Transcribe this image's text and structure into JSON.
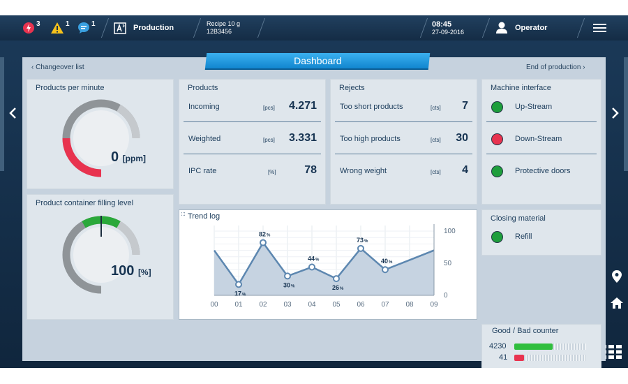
{
  "topbar": {
    "alarms": {
      "count": "3"
    },
    "warnings": {
      "count": "1"
    },
    "messages": {
      "count": "1"
    },
    "mode": "Production",
    "recipe": {
      "line1": "Recipe 10 g",
      "line2": "12B3456"
    },
    "time": "08:45",
    "date": "27-09-2016",
    "user": "Operator"
  },
  "tab_title": "Dashboard",
  "links": {
    "back": "Changeover list",
    "forward": "End of production"
  },
  "ppm": {
    "title": "Products per minute",
    "value": "0",
    "unit": "[ppm]",
    "fraction": 0.25
  },
  "filling": {
    "title": "Product container filling level",
    "value": "100",
    "unit": "[%]",
    "fraction": 1.0
  },
  "products": {
    "title": "Products",
    "rows": [
      {
        "label": "Incoming",
        "unit": "[pcs]",
        "value": "4.271"
      },
      {
        "label": "Weighted",
        "unit": "[pcs]",
        "value": "3.331"
      },
      {
        "label": "IPC rate",
        "unit": "[%]",
        "value": "78"
      }
    ]
  },
  "rejects": {
    "title": "Rejects",
    "rows": [
      {
        "label": "Too short products",
        "unit": "[cts]",
        "value": "7"
      },
      {
        "label": "Too high products",
        "unit": "[cts]",
        "value": "30"
      },
      {
        "label": "Wrong weight",
        "unit": "[cts]",
        "value": "4"
      }
    ]
  },
  "machine": {
    "title": "Machine interface",
    "rows": [
      {
        "label": "Up-Stream",
        "color": "#1e9e3c"
      },
      {
        "label": "Down-Stream",
        "color": "#e8334f"
      },
      {
        "label": "Protective doors",
        "color": "#1e9e3c"
      }
    ]
  },
  "closing": {
    "title": "Closing material",
    "rows": [
      {
        "label": "Refill",
        "color": "#1e9e3c"
      }
    ]
  },
  "counter": {
    "title": "Good / Bad counter",
    "good": "4230",
    "bad": "41",
    "good_color": "#2fbe3d",
    "bad_color": "#e8334f"
  },
  "chart_data": {
    "type": "line",
    "title": "Trend log",
    "x": [
      "00",
      "01",
      "02",
      "03",
      "04",
      "05",
      "06",
      "07",
      "08",
      "09"
    ],
    "values": [
      70,
      17,
      82,
      30,
      44,
      26,
      73,
      40,
      55,
      70
    ],
    "labeled": [
      false,
      true,
      true,
      true,
      true,
      true,
      true,
      true,
      false,
      false
    ],
    "point_markers": [
      false,
      true,
      true,
      true,
      true,
      true,
      true,
      true,
      false,
      false
    ],
    "point_labels": [
      "",
      "17",
      "82",
      "30",
      "44",
      "26",
      "73",
      "40",
      "",
      ""
    ],
    "point_label_unit": "%",
    "yticks": [
      "0",
      "50",
      "100"
    ],
    "ylim": [
      0,
      100
    ],
    "grid": true,
    "line_color": "#5d87b0",
    "fill_color": "#c6d3e1"
  }
}
